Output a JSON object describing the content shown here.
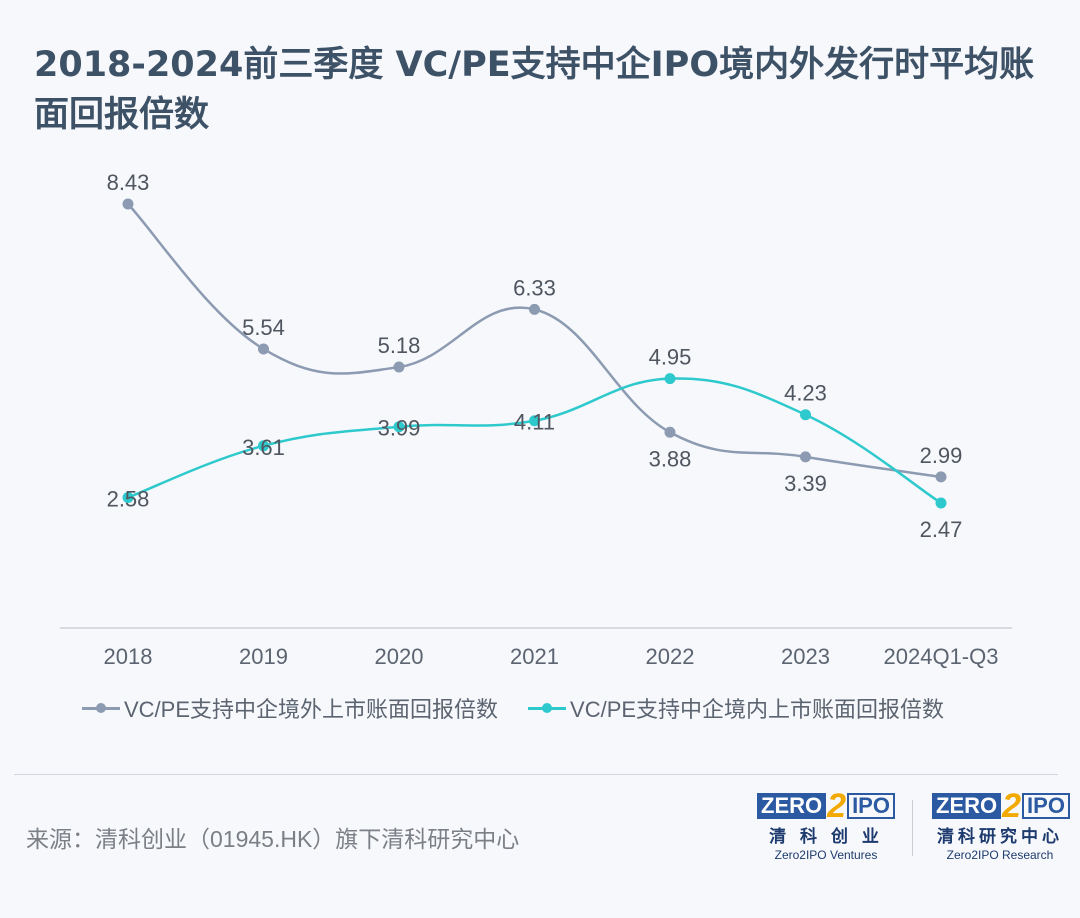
{
  "title": "2018-2024前三季度 VC/PE支持中企IPO境内外发行时平均账面回报倍数",
  "chart_data": {
    "type": "line",
    "categories": [
      "2018",
      "2019",
      "2020",
      "2021",
      "2022",
      "2023",
      "2024Q1-Q3"
    ],
    "series": [
      {
        "name": "VC/PE支持中企境外上市账面回报倍数",
        "values": [
          8.43,
          5.54,
          5.18,
          6.33,
          3.88,
          3.39,
          2.99
        ],
        "color": "#8c9bb1"
      },
      {
        "name": "VC/PE支持中企境内上市账面回报倍数",
        "values": [
          2.58,
          3.61,
          3.99,
          4.11,
          4.95,
          4.23,
          2.47
        ],
        "color": "#2ec9cc"
      }
    ],
    "legend": "bottom",
    "grid": false
  },
  "source": "来源：清科创业（01945.HK）旗下清科研究中心",
  "logos": [
    {
      "zero": "ZERO",
      "two": "2",
      "ipo": "IPO",
      "cn": "清 科 创 业",
      "en": "Zero2IPO Ventures"
    },
    {
      "zero": "ZERO",
      "two": "2",
      "ipo": "IPO",
      "cn": "清科研究中心",
      "en": "Zero2IPO Research"
    }
  ]
}
